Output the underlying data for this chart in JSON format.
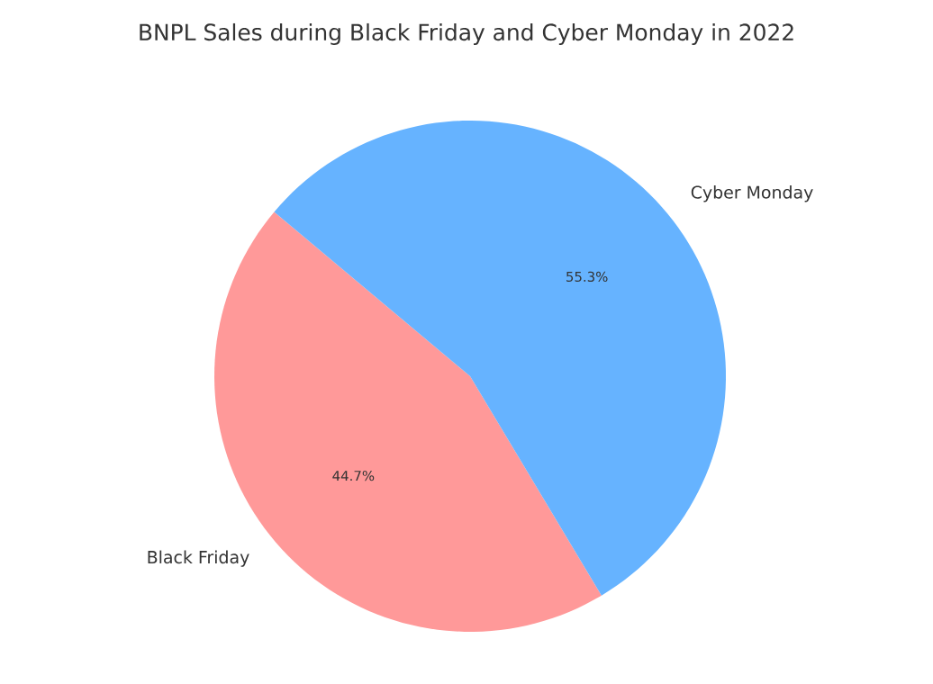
{
  "chart_data": {
    "type": "pie",
    "title": "BNPL Sales during Black Friday and Cyber Monday in 2022",
    "categories": [
      "Black Friday",
      "Cyber Monday"
    ],
    "values": [
      44.7,
      55.3
    ],
    "colors": [
      "#ff9999",
      "#66b3ff"
    ],
    "value_labels": [
      "44.7%",
      "55.3%"
    ]
  }
}
